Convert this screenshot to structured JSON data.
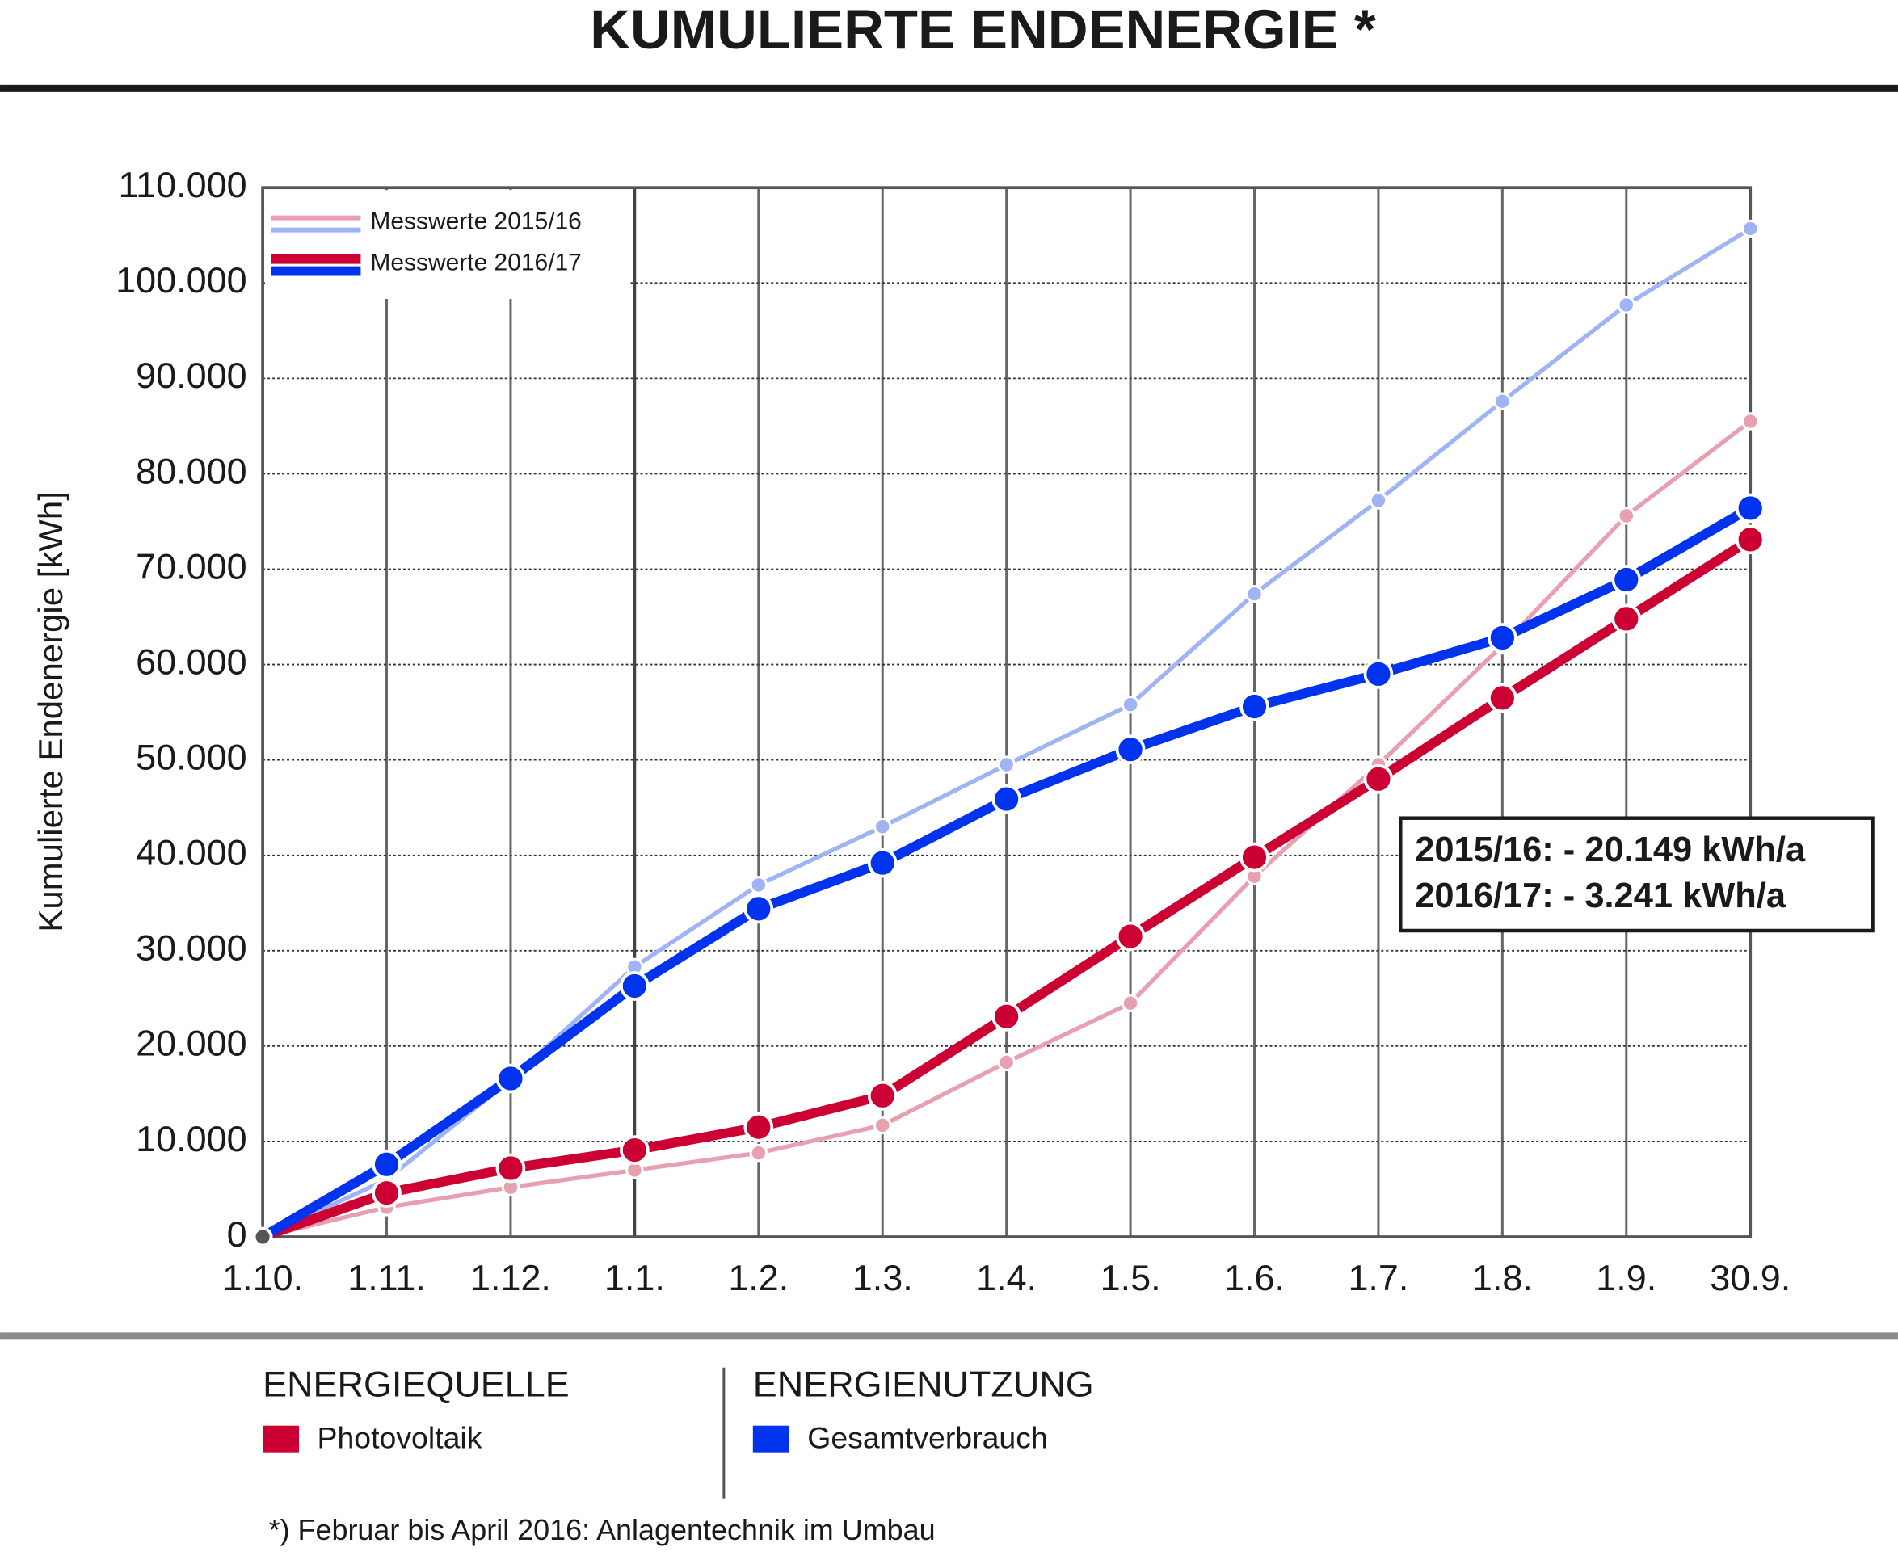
{
  "chart_data": {
    "type": "line",
    "title": "KUMULIERTE ENDENERGIE *",
    "y_label": "Kumulierte Endenergie [kWh]",
    "categories": [
      "1.10.",
      "1.11.",
      "1.12.",
      "1.1.",
      "1.2.",
      "1.3.",
      "1.4.",
      "1.5.",
      "1.6.",
      "1.7.",
      "1.8.",
      "1.9.",
      "30.9."
    ],
    "ylim": [
      0,
      110000
    ],
    "yticks": [
      0,
      {
        "value": 10000,
        "label": "10.000"
      },
      {
        "value": 20000,
        "label": "20.000"
      },
      {
        "value": 30000,
        "label": "30.000"
      },
      {
        "value": 40000,
        "label": "40.000"
      },
      {
        "value": 50000,
        "label": "50.000"
      },
      {
        "value": 60000,
        "label": "60.000"
      },
      {
        "value": 70000,
        "label": "70.000"
      },
      {
        "value": 80000,
        "label": "80.000"
      },
      {
        "value": 90000,
        "label": "90.000"
      },
      {
        "value": 100000,
        "label": "100.000"
      },
      {
        "value": 110000,
        "label": "110.000"
      }
    ],
    "grid": true,
    "groups": [
      {
        "name": "Messwerte 2015/16",
        "series": [
          {
            "name": "Photovoltaik",
            "color": "#e8a0b0",
            "values": [
              0,
              3100,
              5200,
              7000,
              8800,
              11700,
              18300,
              24500,
              37800,
              49500,
              62000,
              75600,
              85500
            ]
          },
          {
            "name": "Gesamtverbrauch",
            "color": "#9fb4f5",
            "values": [
              0,
              6000,
              16500,
              28300,
              36900,
              43000,
              49500,
              55800,
              67400,
              77200,
              87600,
              97700,
              105700
            ]
          }
        ]
      },
      {
        "name": "Messwerte 2016/17",
        "series": [
          {
            "name": "Photovoltaik",
            "color": "#cc0033",
            "values": [
              0,
              4600,
              7200,
              9100,
              11500,
              14800,
              23100,
              31500,
              39800,
              48000,
              56500,
              64800,
              73100
            ]
          },
          {
            "name": "Gesamtverbrauch",
            "color": "#0033ee",
            "values": [
              0,
              7600,
              16600,
              26300,
              34400,
              39200,
              45900,
              51100,
              55600,
              59000,
              62800,
              68900,
              76400
            ]
          }
        ]
      }
    ],
    "annotations": [
      "2015/16: - 20.149 kWh/a",
      "2016/17: - 3.241 kWh/a"
    ],
    "legend_headings": [
      "ENERGIEQUELLE",
      "ENERGIENUTZUNG"
    ],
    "footnote": "*) Februar bis April 2016: Anlagentechnik im Umbau"
  }
}
